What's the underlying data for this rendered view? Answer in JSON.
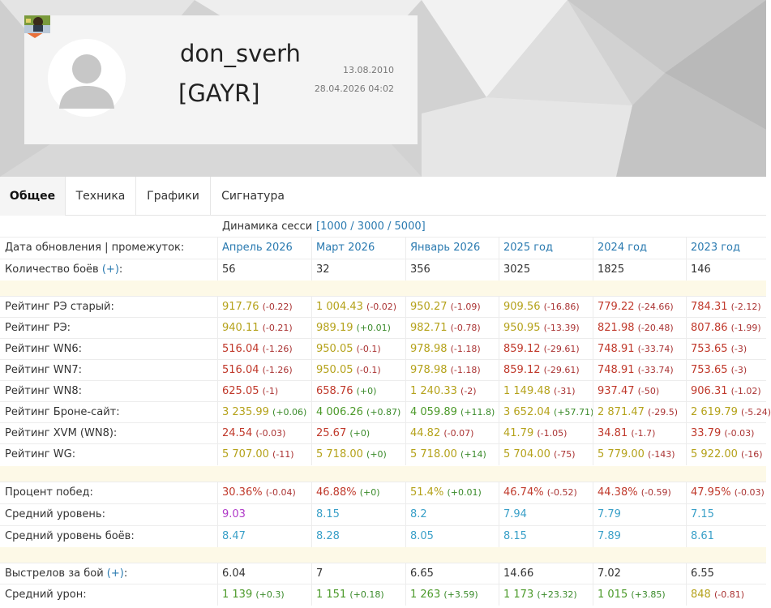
{
  "profile": {
    "username": "don_sverh",
    "clan_tag": "[GAYR]",
    "date_registered": "13.08.2010",
    "date_updated": "28.04.2026 04:02"
  },
  "tabs": [
    {
      "label": "Общее",
      "active": true
    },
    {
      "label": "Техника",
      "active": false
    },
    {
      "label": "Графики",
      "active": false
    },
    {
      "label": "Сигнатура",
      "active": false
    }
  ],
  "dynamics": {
    "label": "Динамика сесси",
    "links": "[1000 / 3000 / 5000]"
  },
  "table": {
    "header_label": "Дата обновления | промежуток:",
    "columns": [
      "Апрель 2026",
      "Март 2026",
      "Январь 2026",
      "2025 год",
      "2024 год",
      "2023 год"
    ],
    "battles": {
      "label": "Количество боёв",
      "plus": "(+)",
      "suffix": ":",
      "values": [
        "56",
        "32",
        "356",
        "3025",
        "1825",
        "146"
      ]
    },
    "ratings": [
      {
        "label": "Рейтинг РЭ старый:",
        "cells": [
          {
            "v": "917.76",
            "d": "(-0.22)",
            "c": "yel"
          },
          {
            "v": "1 004.43",
            "d": "(-0.02)",
            "c": "yel"
          },
          {
            "v": "950.27",
            "d": "(-1.09)",
            "c": "yel"
          },
          {
            "v": "909.56",
            "d": "(-16.86)",
            "c": "yel"
          },
          {
            "v": "779.22",
            "d": "(-24.66)",
            "c": "red"
          },
          {
            "v": "784.31",
            "d": "(-2.12)",
            "c": "red"
          }
        ]
      },
      {
        "label": "Рейтинг РЭ:",
        "cells": [
          {
            "v": "940.11",
            "d": "(-0.21)",
            "c": "yel"
          },
          {
            "v": "989.19",
            "d": "(+0.01)",
            "c": "yel"
          },
          {
            "v": "982.71",
            "d": "(-0.78)",
            "c": "yel"
          },
          {
            "v": "950.95",
            "d": "(-13.39)",
            "c": "yel"
          },
          {
            "v": "821.98",
            "d": "(-20.48)",
            "c": "red"
          },
          {
            "v": "807.86",
            "d": "(-1.99)",
            "c": "red"
          }
        ]
      },
      {
        "label": "Рейтинг WN6:",
        "cells": [
          {
            "v": "516.04",
            "d": "(-1.26)",
            "c": "red"
          },
          {
            "v": "950.05",
            "d": "(-0.1)",
            "c": "yel"
          },
          {
            "v": "978.98",
            "d": "(-1.18)",
            "c": "yel"
          },
          {
            "v": "859.12",
            "d": "(-29.61)",
            "c": "red"
          },
          {
            "v": "748.91",
            "d": "(-33.74)",
            "c": "red"
          },
          {
            "v": "753.65",
            "d": "(-3)",
            "c": "red"
          }
        ]
      },
      {
        "label": "Рейтинг WN7:",
        "cells": [
          {
            "v": "516.04",
            "d": "(-1.26)",
            "c": "red"
          },
          {
            "v": "950.05",
            "d": "(-0.1)",
            "c": "yel"
          },
          {
            "v": "978.98",
            "d": "(-1.18)",
            "c": "yel"
          },
          {
            "v": "859.12",
            "d": "(-29.61)",
            "c": "red"
          },
          {
            "v": "748.91",
            "d": "(-33.74)",
            "c": "red"
          },
          {
            "v": "753.65",
            "d": "(-3)",
            "c": "red"
          }
        ]
      },
      {
        "label": "Рейтинг WN8:",
        "cells": [
          {
            "v": "625.05",
            "d": "(-1)",
            "c": "red"
          },
          {
            "v": "658.76",
            "d": "(+0)",
            "c": "red"
          },
          {
            "v": "1 240.33",
            "d": "(-2)",
            "c": "yel"
          },
          {
            "v": "1 149.48",
            "d": "(-31)",
            "c": "yel"
          },
          {
            "v": "937.47",
            "d": "(-50)",
            "c": "red"
          },
          {
            "v": "906.31",
            "d": "(-1.02)",
            "c": "red"
          }
        ]
      },
      {
        "label": "Рейтинг Броне-сайт:",
        "cells": [
          {
            "v": "3 235.99",
            "d": "(+0.06)",
            "c": "yel"
          },
          {
            "v": "4 006.26",
            "d": "(+0.87)",
            "c": "grn"
          },
          {
            "v": "4 059.89",
            "d": "(+11.8)",
            "c": "grn"
          },
          {
            "v": "3 652.04",
            "d": "(+57.71)",
            "c": "yel"
          },
          {
            "v": "2 871.47",
            "d": "(-29.5)",
            "c": "yel"
          },
          {
            "v": "2 619.79",
            "d": "(-5.24)",
            "c": "yel"
          }
        ]
      },
      {
        "label": "Рейтинг XVM (WN8):",
        "cells": [
          {
            "v": "24.54",
            "d": "(-0.03)",
            "c": "red"
          },
          {
            "v": "25.67",
            "d": "(+0)",
            "c": "red"
          },
          {
            "v": "44.82",
            "d": "(-0.07)",
            "c": "yel"
          },
          {
            "v": "41.79",
            "d": "(-1.05)",
            "c": "yel"
          },
          {
            "v": "34.81",
            "d": "(-1.7)",
            "c": "red"
          },
          {
            "v": "33.79",
            "d": "(-0.03)",
            "c": "red"
          }
        ]
      },
      {
        "label": "Рейтинг WG:",
        "cells": [
          {
            "v": "5 707.00",
            "d": "(-11)",
            "c": "yel"
          },
          {
            "v": "5 718.00",
            "d": "(+0)",
            "c": "yel"
          },
          {
            "v": "5 718.00",
            "d": "(+14)",
            "c": "yel"
          },
          {
            "v": "5 704.00",
            "d": "(-75)",
            "c": "yel"
          },
          {
            "v": "5 779.00",
            "d": "(-143)",
            "c": "yel"
          },
          {
            "v": "5 922.00",
            "d": "(-16)",
            "c": "yel"
          }
        ]
      }
    ],
    "winrate": [
      {
        "label": "Процент побед:",
        "cells": [
          {
            "v": "30.36%",
            "d": "(-0.04)",
            "c": "red"
          },
          {
            "v": "46.88%",
            "d": "(+0)",
            "c": "red"
          },
          {
            "v": "51.4%",
            "d": "(+0.01)",
            "c": "yel"
          },
          {
            "v": "46.74%",
            "d": "(-0.52)",
            "c": "red"
          },
          {
            "v": "44.38%",
            "d": "(-0.59)",
            "c": "red"
          },
          {
            "v": "47.95%",
            "d": "(-0.03)",
            "c": "red"
          }
        ]
      },
      {
        "label": "Средний уровень:",
        "cells": [
          {
            "v": "9.03",
            "d": "",
            "c": "pur"
          },
          {
            "v": "8.15",
            "d": "",
            "c": "blu"
          },
          {
            "v": "8.2",
            "d": "",
            "c": "blu"
          },
          {
            "v": "7.94",
            "d": "",
            "c": "blu"
          },
          {
            "v": "7.79",
            "d": "",
            "c": "blu"
          },
          {
            "v": "7.15",
            "d": "",
            "c": "blu"
          }
        ]
      },
      {
        "label": "Средний уровень боёв:",
        "cells": [
          {
            "v": "8.47",
            "d": "",
            "c": "blu"
          },
          {
            "v": "8.28",
            "d": "",
            "c": "blu"
          },
          {
            "v": "8.05",
            "d": "",
            "c": "blu"
          },
          {
            "v": "8.15",
            "d": "",
            "c": "blu"
          },
          {
            "v": "7.89",
            "d": "",
            "c": "blu"
          },
          {
            "v": "8.61",
            "d": "",
            "c": "blu"
          }
        ]
      }
    ],
    "shots": {
      "label": "Выстрелов за бой",
      "plus": "(+)",
      "suffix": ":",
      "values": [
        "6.04",
        "7",
        "6.65",
        "14.66",
        "7.02",
        "6.55"
      ]
    },
    "damage": {
      "label": "Средний урон:",
      "cells": [
        {
          "v": "1 139",
          "d": "(+0.3)",
          "c": "grn"
        },
        {
          "v": "1 151",
          "d": "(+0.18)",
          "c": "grn"
        },
        {
          "v": "1 263",
          "d": "(+3.59)",
          "c": "grn"
        },
        {
          "v": "1 173",
          "d": "(+23.32)",
          "c": "grn"
        },
        {
          "v": "1 015",
          "d": "(+3.85)",
          "c": "grn"
        },
        {
          "v": "848",
          "d": "(-0.81)",
          "c": "yel"
        }
      ]
    }
  }
}
